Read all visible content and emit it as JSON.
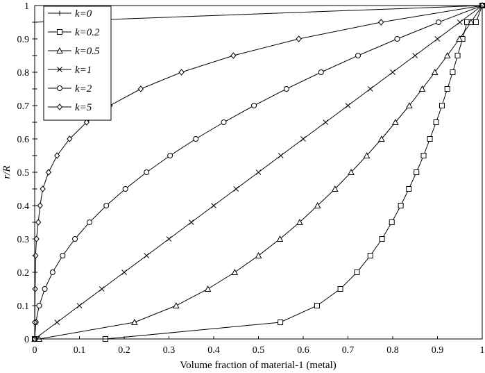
{
  "chart_data": {
    "type": "line",
    "xlabel": "Volume fraction of material-1 (metal)",
    "ylabel": "r/R",
    "xlim": [
      0,
      1
    ],
    "ylim": [
      0,
      1
    ],
    "x_ticks": [
      "0",
      "0.1",
      "0.2",
      "0.3",
      "0.4",
      "0.5",
      "0.6",
      "0.7",
      "0.8",
      "0.9",
      "1"
    ],
    "y_ticks": [
      "0",
      "0.1",
      "0.2",
      "0.3",
      "0.4",
      "0.5",
      "0.6",
      "0.7",
      "0.8",
      "0.9",
      "1"
    ],
    "grid": false,
    "legend_position": "top-left",
    "series": [
      {
        "name": "k=0",
        "marker": "plus",
        "x": [
          0,
          0,
          0,
          0,
          0,
          0,
          0,
          0,
          0,
          0,
          0,
          0,
          0,
          0,
          0,
          0,
          0,
          0,
          0,
          0,
          1
        ],
        "y": [
          0,
          0.05,
          0.1,
          0.15,
          0.2,
          0.25,
          0.3,
          0.35,
          0.4,
          0.45,
          0.5,
          0.55,
          0.6,
          0.65,
          0.7,
          0.75,
          0.8,
          0.85,
          0.9,
          0.95,
          1
        ]
      },
      {
        "name": "k=0.2",
        "marker": "square",
        "x": [
          0,
          0.158,
          0.549,
          0.631,
          0.683,
          0.72,
          0.75,
          0.776,
          0.798,
          0.818,
          0.836,
          0.853,
          0.869,
          0.883,
          0.897,
          0.91,
          0.922,
          0.934,
          0.945,
          0.956,
          0.966,
          0.976,
          0.986,
          1
        ],
        "y": [
          0,
          0,
          0.05,
          0.1,
          0.15,
          0.2,
          0.25,
          0.3,
          0.35,
          0.4,
          0.45,
          0.5,
          0.55,
          0.6,
          0.65,
          0.7,
          0.75,
          0.8,
          0.85,
          0.9,
          0.95,
          0.95,
          0.95,
          1
        ]
      },
      {
        "name": "k=0.5",
        "marker": "triangle",
        "x": [
          0,
          0.01,
          0.223,
          0.316,
          0.387,
          0.447,
          0.5,
          0.548,
          0.592,
          0.632,
          0.671,
          0.707,
          0.742,
          0.775,
          0.806,
          0.837,
          0.866,
          0.894,
          0.922,
          0.949,
          0.975,
          1
        ],
        "y": [
          0,
          0,
          0.05,
          0.1,
          0.15,
          0.2,
          0.25,
          0.3,
          0.35,
          0.4,
          0.45,
          0.5,
          0.55,
          0.6,
          0.65,
          0.7,
          0.75,
          0.8,
          0.85,
          0.9,
          0.95,
          1
        ]
      },
      {
        "name": "k=1",
        "marker": "x",
        "x": [
          0,
          0.05,
          0.1,
          0.15,
          0.2,
          0.25,
          0.3,
          0.35,
          0.4,
          0.45,
          0.5,
          0.55,
          0.6,
          0.65,
          0.7,
          0.75,
          0.8,
          0.85,
          0.9,
          0.95,
          1
        ],
        "y": [
          0,
          0.05,
          0.1,
          0.15,
          0.2,
          0.25,
          0.3,
          0.35,
          0.4,
          0.45,
          0.5,
          0.55,
          0.6,
          0.65,
          0.7,
          0.75,
          0.8,
          0.85,
          0.9,
          0.95,
          1
        ]
      },
      {
        "name": "k=2",
        "marker": "circle",
        "x": [
          0,
          0.0025,
          0.01,
          0.0225,
          0.04,
          0.0625,
          0.09,
          0.1225,
          0.16,
          0.2025,
          0.25,
          0.3025,
          0.36,
          0.4225,
          0.49,
          0.5625,
          0.64,
          0.7225,
          0.81,
          0.9025,
          1
        ],
        "y": [
          0,
          0.05,
          0.1,
          0.15,
          0.2,
          0.25,
          0.3,
          0.35,
          0.4,
          0.45,
          0.5,
          0.55,
          0.6,
          0.65,
          0.7,
          0.75,
          0.8,
          0.85,
          0.9,
          0.95,
          1
        ]
      },
      {
        "name": "k=5",
        "marker": "diamond",
        "x": [
          0,
          0.0003,
          0.001,
          0.002,
          0.004,
          0.008,
          0.012,
          0.018,
          0.031,
          0.05,
          0.078,
          0.116,
          0.168,
          0.237,
          0.328,
          0.444,
          0.59,
          0.774,
          1
        ],
        "y": [
          0,
          0.05,
          0.15,
          0.25,
          0.3,
          0.35,
          0.4,
          0.45,
          0.5,
          0.55,
          0.6,
          0.65,
          0.7,
          0.75,
          0.8,
          0.85,
          0.9,
          0.95,
          1
        ]
      }
    ]
  }
}
